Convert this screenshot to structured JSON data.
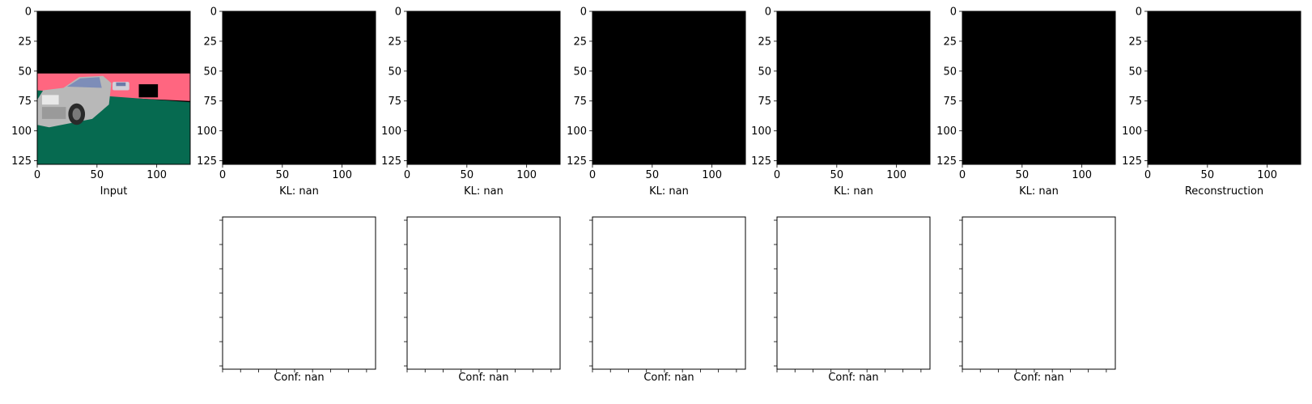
{
  "chart_data": {
    "type": "image-grid",
    "image_extent": [
      0,
      128
    ],
    "x_ticks": [
      0,
      50,
      100
    ],
    "y_ticks": [
      0,
      25,
      50,
      75,
      100,
      125
    ],
    "top_row": [
      {
        "xlabel": "Input",
        "content": "input-scene"
      },
      {
        "xlabel": "KL: nan",
        "content": "black"
      },
      {
        "xlabel": "KL: nan",
        "content": "black"
      },
      {
        "xlabel": "KL: nan",
        "content": "black"
      },
      {
        "xlabel": "KL: nan",
        "content": "black"
      },
      {
        "xlabel": "KL: nan",
        "content": "black"
      },
      {
        "xlabel": "Reconstruction",
        "content": "black"
      }
    ],
    "bottom_row": [
      {
        "xlabel": "Conf: nan",
        "content": "blank"
      },
      {
        "xlabel": "Conf: nan",
        "content": "blank"
      },
      {
        "xlabel": "Conf: nan",
        "content": "blank"
      },
      {
        "xlabel": "Conf: nan",
        "content": "blank"
      },
      {
        "xlabel": "Conf: nan",
        "content": "blank"
      }
    ],
    "colors": {
      "sky": "#000000",
      "road": "#066a50",
      "wall": "#ff6680",
      "car": "#b8b8b8"
    }
  }
}
